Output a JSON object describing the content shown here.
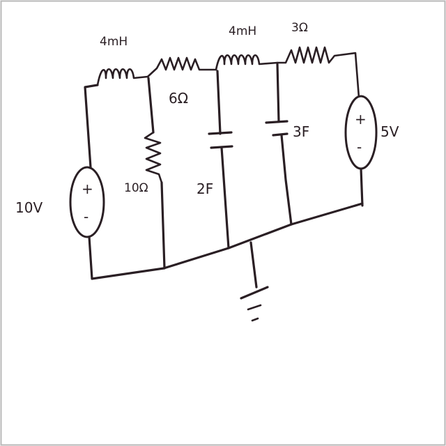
{
  "diagram": {
    "components": {
      "inductor_1": {
        "label": "4mH"
      },
      "inductor_2": {
        "label": "4mH"
      },
      "resistor_series_1": {
        "label": "6Ω"
      },
      "resistor_series_2": {
        "label": "3Ω"
      },
      "resistor_shunt": {
        "label": "10Ω"
      },
      "capacitor_1": {
        "label": "2F"
      },
      "capacitor_2": {
        "label": "3F"
      },
      "source_left": {
        "label": "10V",
        "plus": "+",
        "minus": "-"
      },
      "source_right": {
        "label": "5V",
        "plus": "+",
        "minus": "-"
      }
    },
    "colors": {
      "ink": "#2a1f24",
      "background": "#ffffff",
      "border": "#b8b8b8"
    }
  }
}
